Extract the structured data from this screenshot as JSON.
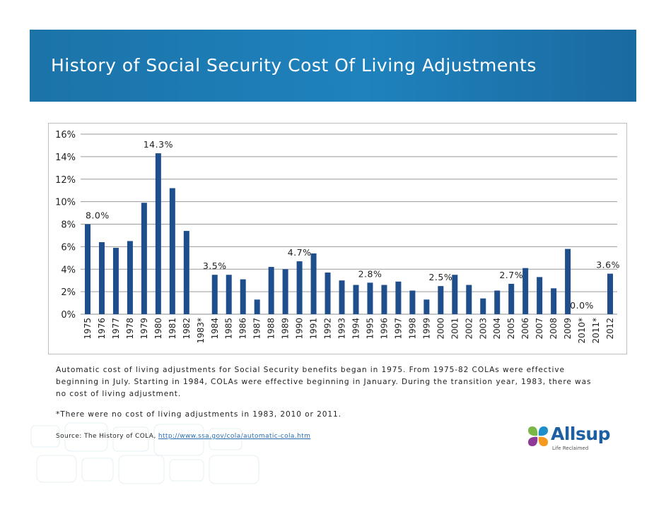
{
  "header": {
    "title": "History of Social Security Cost Of Living Adjustments"
  },
  "chart_data": {
    "type": "bar",
    "categories": [
      "1975",
      "1976",
      "1977",
      "1978",
      "1979",
      "1980",
      "1981",
      "1982",
      "1983*",
      "1984",
      "1985",
      "1986",
      "1987",
      "1988",
      "1989",
      "1990",
      "1991",
      "1992",
      "1993",
      "1994",
      "1995",
      "1996",
      "1997",
      "1998",
      "1999",
      "2000",
      "2001",
      "2002",
      "2003",
      "2004",
      "2005",
      "2006",
      "2007",
      "2008",
      "2009",
      "2010*",
      "2011*",
      "2012"
    ],
    "values": [
      8.0,
      6.4,
      5.9,
      6.5,
      9.9,
      14.3,
      11.2,
      7.4,
      0,
      3.5,
      3.5,
      3.1,
      1.3,
      4.2,
      4.0,
      4.7,
      5.4,
      3.7,
      3.0,
      2.6,
      2.8,
      2.6,
      2.9,
      2.1,
      1.3,
      2.5,
      3.5,
      2.6,
      1.4,
      2.1,
      2.7,
      4.1,
      3.3,
      2.3,
      5.8,
      0.0,
      0.0,
      3.6
    ],
    "data_labels": [
      {
        "category": "1980",
        "text": "14.3%"
      },
      {
        "category": "1975",
        "text": "8.0%"
      },
      {
        "category": "1990",
        "text": "4.7%"
      },
      {
        "category": "1984",
        "text": "3.5%"
      },
      {
        "category": "1995",
        "text": "2.8%"
      },
      {
        "category": "2000",
        "text": "2.5%"
      },
      {
        "category": "2005",
        "text": "2.7%"
      },
      {
        "category": "2010*",
        "text": "0.0%"
      },
      {
        "category": "2012",
        "text": "3.6%"
      }
    ],
    "ylim": [
      0,
      16
    ],
    "y_ticks": [
      "0%",
      "2%",
      "4%",
      "6%",
      "8%",
      "10%",
      "12%",
      "14%",
      "16%"
    ],
    "bar_color": "#1f4e8c",
    "grid": true,
    "xlabel": "",
    "ylabel": ""
  },
  "notes": {
    "paragraph": "Automatic cost of living adjustments for Social Security benefits began in 1975. From 1975-82 COLAs were effective beginning in July. Starting in 1984, COLAs were effective beginning in January. During the transition year, 1983, there was no cost of living adjustment.",
    "asterisk": "*There were no cost of living adjustments in 1983, 2010 or 2011."
  },
  "source": {
    "prefix": "Source: The History of COLA, ",
    "link": "http://www.ssa.gov/cola/automatic-cola.htm"
  },
  "logo": {
    "name": "Allsup",
    "tagline": "Life Reclaimed"
  },
  "colors": {
    "header_blue": "#1b73a8",
    "bar": "#1f4e8c",
    "link": "#2a6db0"
  }
}
